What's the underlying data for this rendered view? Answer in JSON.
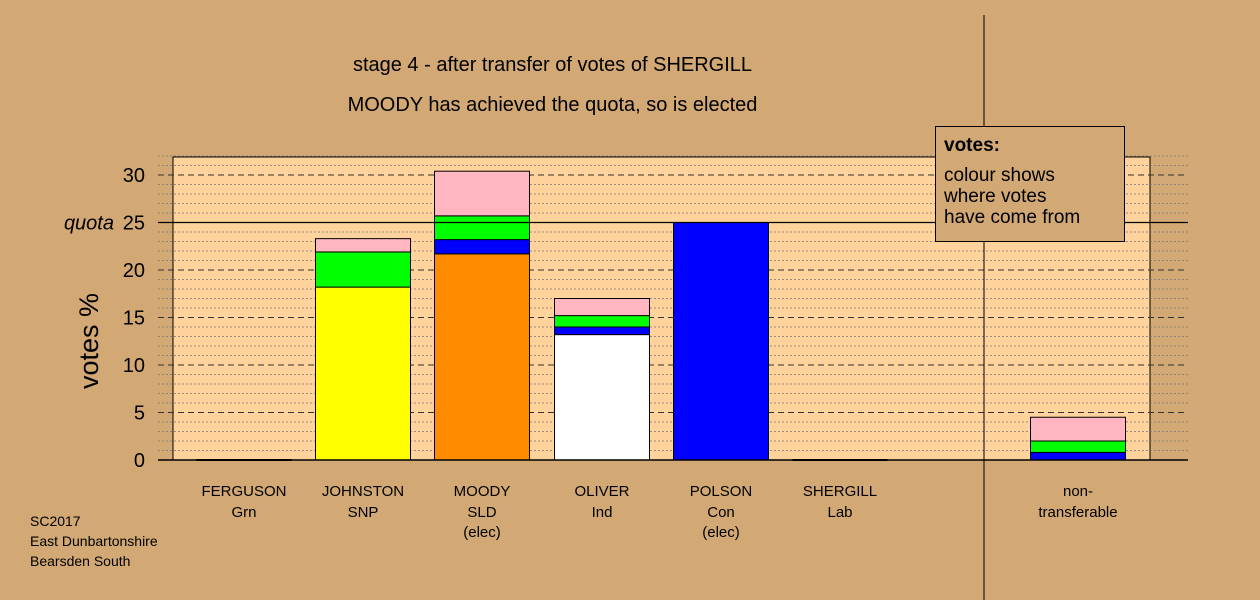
{
  "title": "stage 4 - after transfer of votes of SHERGILL",
  "subtitle": "MOODY has achieved the quota, so is elected",
  "legend": {
    "title": "votes:",
    "lines": [
      "colour shows",
      "where votes",
      "have come from"
    ]
  },
  "footer": [
    "SC2017",
    "East Dunbartonshire",
    "Bearsden South"
  ],
  "colors": {
    "background": "#d2a874",
    "plot_background": "#ffd39b",
    "SNP": "#ffff00",
    "SLD": "#ff8c00",
    "Ind": "#ffffff",
    "Con": "#0000ff",
    "Grn": "#00ff00",
    "Lab": "#ffb6c1"
  },
  "chart_data": {
    "type": "bar",
    "stacked": true,
    "ylabel": "votes %",
    "ylim": [
      0,
      32
    ],
    "yticks": [
      0,
      5,
      10,
      15,
      20,
      25,
      30
    ],
    "quota": 25,
    "quota_label": "quota",
    "grid": true,
    "candidates": [
      {
        "name": "FERGUSON",
        "party": "Grn",
        "note": "",
        "segments": []
      },
      {
        "name": "JOHNSTON",
        "party": "SNP",
        "note": "",
        "segments": [
          {
            "source": "SNP",
            "value": 18.2
          },
          {
            "source": "Grn",
            "value": 3.7
          },
          {
            "source": "Lab",
            "value": 1.4
          }
        ]
      },
      {
        "name": "MOODY",
        "party": "SLD",
        "note": "(elec)",
        "segments": [
          {
            "source": "SLD",
            "value": 21.7
          },
          {
            "source": "Con",
            "value": 1.5
          },
          {
            "source": "Grn",
            "value": 2.5
          },
          {
            "source": "Lab",
            "value": 4.7
          }
        ]
      },
      {
        "name": "OLIVER",
        "party": "Ind",
        "note": "",
        "segments": [
          {
            "source": "Ind",
            "value": 13.2
          },
          {
            "source": "Con",
            "value": 0.8
          },
          {
            "source": "Grn",
            "value": 1.2
          },
          {
            "source": "Lab",
            "value": 1.8
          }
        ]
      },
      {
        "name": "POLSON",
        "party": "Con",
        "note": "(elec)",
        "segments": [
          {
            "source": "Con",
            "value": 25.0
          }
        ]
      },
      {
        "name": "SHERGILL",
        "party": "Lab",
        "note": "",
        "segments": []
      }
    ],
    "non_transferable": {
      "label": "non-",
      "label2": "transferable",
      "segments": [
        {
          "source": "Con",
          "value": 0.8
        },
        {
          "source": "Grn",
          "value": 1.2
        },
        {
          "source": "Lab",
          "value": 2.5
        }
      ]
    }
  }
}
